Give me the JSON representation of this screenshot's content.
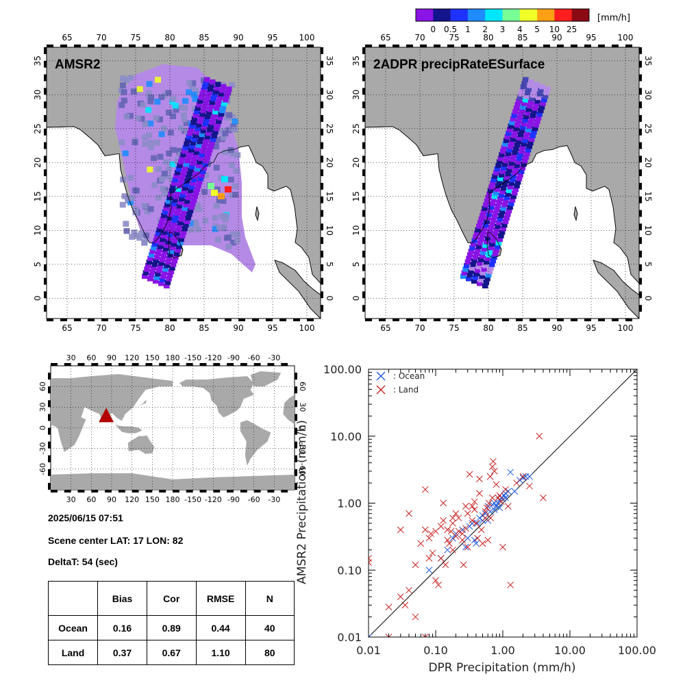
{
  "colorbar": {
    "unit": "[mm/h]",
    "ticks": [
      "0",
      "0.5",
      "1",
      "2",
      "3",
      "4",
      "5",
      "10",
      "25"
    ],
    "colors": [
      "#8a14e6",
      "#14148c",
      "#1e32ff",
      "#1e8cff",
      "#00e6ff",
      "#78ff96",
      "#f0ff28",
      "#ffa014",
      "#ff1e1e",
      "#8c0a14"
    ]
  },
  "maps": {
    "lon_ticks": [
      "65",
      "70",
      "75",
      "80",
      "85",
      "90",
      "95",
      "100"
    ],
    "lat_ticks": [
      "0",
      "5",
      "10",
      "15",
      "20",
      "25",
      "30",
      "35"
    ],
    "left_title": "AMSR2",
    "right_title": "2ADPR precipRateESurface"
  },
  "world": {
    "lon_ticks": [
      "30",
      "60",
      "90",
      "120",
      "150",
      "180",
      "-150",
      "-120",
      "-90",
      "-60",
      "-30"
    ],
    "lat_ticks": [
      "60",
      "30",
      "0",
      "-30",
      "-60"
    ],
    "marker_color": "#b40000"
  },
  "info": {
    "datetime": "2025/06/15 07:51",
    "scene_center": "Scene center LAT: 17   LON:  82",
    "delta_t": "DeltaT:   54 (sec)"
  },
  "stats": {
    "headers": [
      "",
      "Bias",
      "Cor",
      "RMSE",
      "N"
    ],
    "rows": [
      [
        "Ocean",
        "0.16",
        "0.89",
        "0.44",
        "40"
      ],
      [
        "Land",
        "0.37",
        "0.67",
        "1.10",
        "80"
      ]
    ]
  },
  "chart_data": {
    "type": "scatter",
    "xlabel": "DPR Precipitation (mm/h)",
    "ylabel": "AMSR2 Precipitation (mm/h)",
    "xscale": "log",
    "yscale": "log",
    "xlim": [
      0.01,
      100
    ],
    "ylim": [
      0.01,
      100
    ],
    "x_tick_labels": [
      "0.01",
      "0.10",
      "1.00",
      "10.00",
      "100.00"
    ],
    "y_tick_labels": [
      "0.01",
      "0.10",
      "1.00",
      "10.00",
      "100.00"
    ],
    "legend_position": "top-left",
    "one_to_one_line": true,
    "series": [
      {
        "name": ": Ocean",
        "color": "#1e5adc",
        "marker": "x",
        "points": [
          [
            0.01,
            0.01
          ],
          [
            0.08,
            0.1
          ],
          [
            0.12,
            0.15
          ],
          [
            0.18,
            0.3
          ],
          [
            0.2,
            0.35
          ],
          [
            0.25,
            0.4
          ],
          [
            0.3,
            0.3
          ],
          [
            0.35,
            0.5
          ],
          [
            0.38,
            0.28
          ],
          [
            0.4,
            0.25
          ],
          [
            0.45,
            0.6
          ],
          [
            0.5,
            0.55
          ],
          [
            0.55,
            0.7
          ],
          [
            0.6,
            0.9
          ],
          [
            0.65,
            0.75
          ],
          [
            0.7,
            0.95
          ],
          [
            0.75,
            0.8
          ],
          [
            0.8,
            0.9
          ],
          [
            0.85,
            1.0
          ],
          [
            0.9,
            1.1
          ],
          [
            0.95,
            1.2
          ],
          [
            1.0,
            1.15
          ],
          [
            1.05,
            1.3
          ],
          [
            1.1,
            1.2
          ],
          [
            1.2,
            1.5
          ],
          [
            1.3,
            2.9
          ],
          [
            1.5,
            1.5
          ],
          [
            1.8,
            2.2
          ],
          [
            2.0,
            2.4
          ],
          [
            2.2,
            2.5
          ],
          [
            2.5,
            2.5
          ],
          [
            0.28,
            0.22
          ],
          [
            0.32,
            0.45
          ],
          [
            0.42,
            0.5
          ],
          [
            0.5,
            0.65
          ],
          [
            0.6,
            0.55
          ],
          [
            0.75,
            1.0
          ],
          [
            0.9,
            0.85
          ],
          [
            1.1,
            1.4
          ],
          [
            0.15,
            0.2
          ]
        ]
      },
      {
        "name": ": Land",
        "color": "#c81e1e",
        "marker": "x",
        "points": [
          [
            0.01,
            0.15
          ],
          [
            0.01,
            0.13
          ],
          [
            0.02,
            0.028
          ],
          [
            0.02,
            0.01
          ],
          [
            0.03,
            0.04
          ],
          [
            0.03,
            0.4
          ],
          [
            0.035,
            0.03
          ],
          [
            0.04,
            0.05
          ],
          [
            0.04,
            0.7
          ],
          [
            0.05,
            0.02
          ],
          [
            0.07,
            0.01
          ],
          [
            0.07,
            1.6
          ],
          [
            0.07,
            0.4
          ],
          [
            0.08,
            0.3
          ],
          [
            0.08,
            0.15
          ],
          [
            0.09,
            0.18
          ],
          [
            0.1,
            0.07
          ],
          [
            0.1,
            0.38
          ],
          [
            0.11,
            0.06
          ],
          [
            0.12,
            0.45
          ],
          [
            0.13,
            1.0
          ],
          [
            0.14,
            0.12
          ],
          [
            0.15,
            0.4
          ],
          [
            0.16,
            0.25
          ],
          [
            0.17,
            0.38
          ],
          [
            0.18,
            0.2
          ],
          [
            0.18,
            0.5
          ],
          [
            0.2,
            0.7
          ],
          [
            0.2,
            0.32
          ],
          [
            0.22,
            0.6
          ],
          [
            0.25,
            0.28
          ],
          [
            0.26,
            0.12
          ],
          [
            0.28,
            0.42
          ],
          [
            0.3,
            0.7
          ],
          [
            0.32,
            2.7
          ],
          [
            0.35,
            0.9
          ],
          [
            0.38,
            0.8
          ],
          [
            0.4,
            0.5
          ],
          [
            0.45,
            1.4
          ],
          [
            0.45,
            2.3
          ],
          [
            0.5,
            0.25
          ],
          [
            0.55,
            0.6
          ],
          [
            0.6,
            0.28
          ],
          [
            0.65,
            2.5
          ],
          [
            0.7,
            3.5
          ],
          [
            0.72,
            4.2
          ],
          [
            0.75,
            3.0
          ],
          [
            0.8,
            1.9
          ],
          [
            0.85,
            1.2
          ],
          [
            1.0,
            0.22
          ],
          [
            1.2,
            0.9
          ],
          [
            1.3,
            0.06
          ],
          [
            1.6,
            2.0
          ],
          [
            2.0,
            2.5
          ],
          [
            2.5,
            1.8
          ],
          [
            3.5,
            10.0
          ],
          [
            4.0,
            1.2
          ],
          [
            0.12,
            0.15
          ],
          [
            0.25,
            0.35
          ],
          [
            0.3,
            0.22
          ],
          [
            0.42,
            0.3
          ],
          [
            0.55,
            0.75
          ],
          [
            0.62,
            1.0
          ],
          [
            0.7,
            1.2
          ],
          [
            0.9,
            1.3
          ],
          [
            1.1,
            1.6
          ],
          [
            0.15,
            0.28
          ],
          [
            0.22,
            0.38
          ],
          [
            0.35,
            0.55
          ],
          [
            0.48,
            0.4
          ],
          [
            0.18,
            0.6
          ],
          [
            0.28,
            0.9
          ],
          [
            0.38,
            1.05
          ],
          [
            0.58,
            0.85
          ],
          [
            0.66,
            0.6
          ],
          [
            0.95,
            1.05
          ],
          [
            0.05,
            0.12
          ],
          [
            0.06,
            0.25
          ],
          [
            0.085,
            0.35
          ],
          [
            0.13,
            0.55
          ]
        ]
      }
    ]
  }
}
